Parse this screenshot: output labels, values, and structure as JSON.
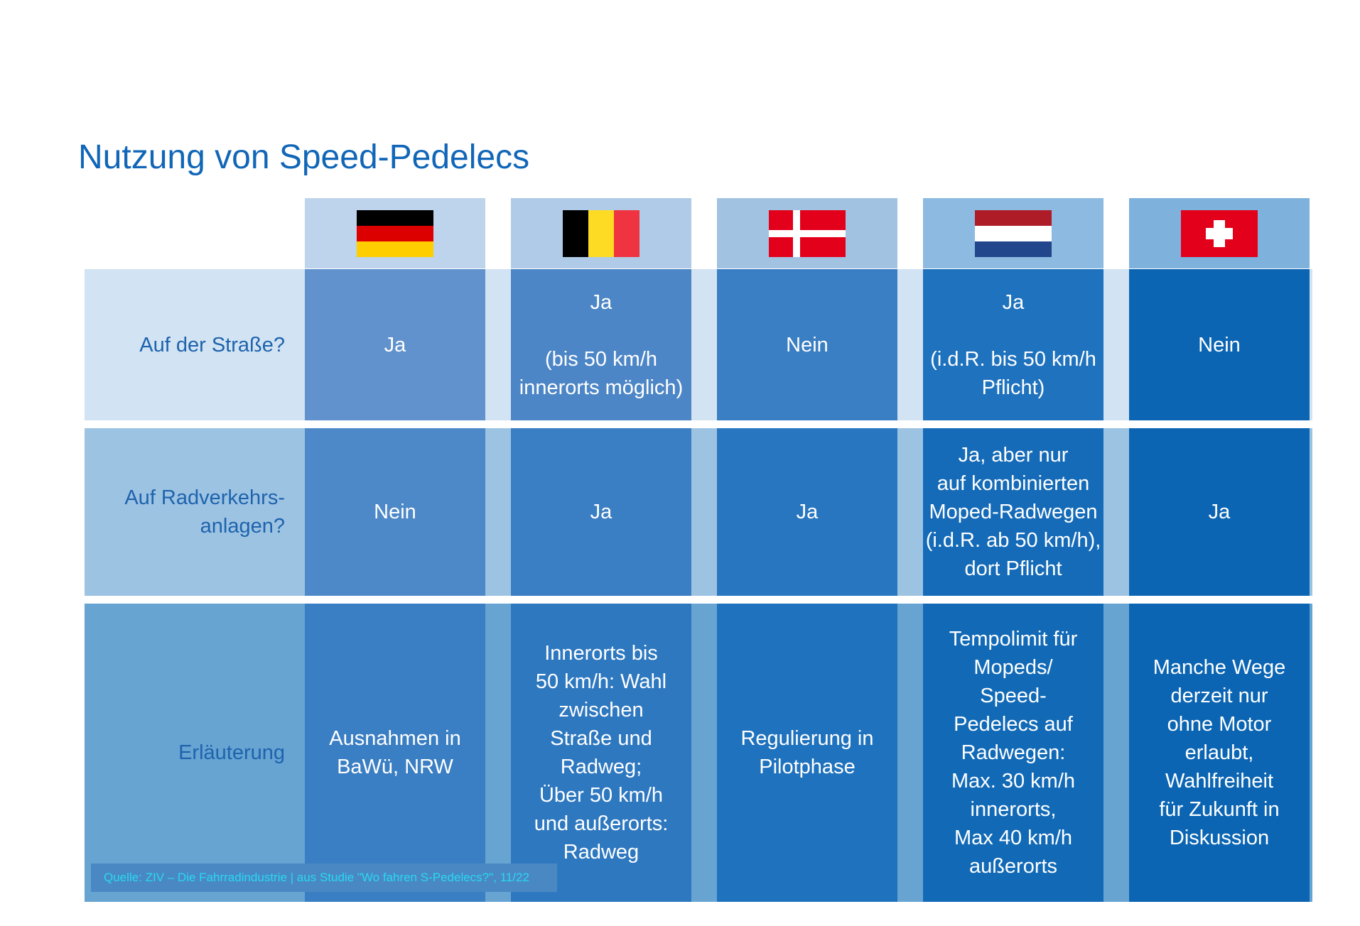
{
  "title": "Nutzung von Speed-Pedelecs",
  "countries": [
    {
      "flag": "germany-flag-icon"
    },
    {
      "flag": "belgium-flag-icon"
    },
    {
      "flag": "denmark-flag-icon"
    },
    {
      "flag": "netherlands-flag-icon"
    },
    {
      "flag": "switzerland-flag-icon"
    }
  ],
  "rows": [
    {
      "label": "Auf der Straße?",
      "cells": [
        "Ja",
        "Ja\n\n(bis 50 km/h\ninnerorts möglich)",
        "Nein",
        "Ja\n\n(i.d.R. bis 50 km/h\nPflicht)",
        "Nein"
      ]
    },
    {
      "label": "Auf Radverkehrs-\nanlagen?",
      "cells": [
        "Nein",
        "Ja",
        "Ja",
        "Ja, aber nur\nauf kombinierten\nMoped-Radwegen\n(i.d.R. ab 50 km/h),\ndort Pflicht",
        "Ja"
      ]
    },
    {
      "label": "Erläuterung",
      "cells": [
        "Ausnahmen in\nBaWü, NRW",
        "Innerorts bis\n50 km/h: Wahl\nzwischen\nStraße und\nRadweg;\nÜber 50 km/h\nund außerorts:\nRadweg",
        "Regulierung in\nPilotphase",
        "Tempolimit für\nMopeds/\nSpeed-\nPedelecs auf\nRadwegen:\nMax. 30 km/h\ninnerorts,\nMax 40 km/h\naußerorts",
        "Manche Wege\nderzeit nur\nohne Motor\nerlaubt,\nWahlfreiheit\nfür Zukunft in\nDiskussion"
      ]
    }
  ],
  "source": "Quelle: ZIV – Die Fahrradindustrie | aus Studie \"Wo fahren S-Pedelecs?\", 11/22",
  "colors": {
    "title": "#1166b8",
    "label_text": "#1e63ad",
    "source_text": "#29d8ee"
  }
}
